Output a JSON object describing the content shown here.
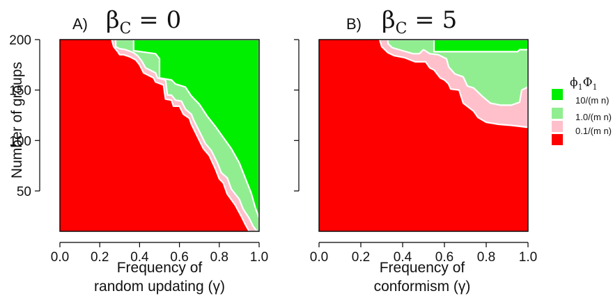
{
  "chart_data": [
    {
      "type": "area",
      "panel_label": "A)",
      "title_symbol": "β",
      "title_sub": "C",
      "title_rest": " = 0",
      "xlabel_line1": "Frequency of",
      "xlabel_line2": "random updating (γ)",
      "ylabel": "Number of groups",
      "xlim": [
        0,
        1
      ],
      "ylim": [
        10,
        200
      ],
      "xticks": [
        "0.0",
        "0.2",
        "0.4",
        "0.6",
        "0.8",
        "1.0"
      ],
      "yticks": [
        "50",
        "100",
        "150",
        "200"
      ],
      "regions": [
        {
          "name": "0.1/(m n)",
          "color": "#ff0000",
          "boundary": [
            [
              0,
              200
            ],
            [
              0,
              10
            ],
            [
              1,
              10
            ],
            [
              1,
              200
            ]
          ]
        },
        {
          "name": "1.0/(m n)",
          "color": "#ffc0cb",
          "boundary": [
            [
              0.26,
              200
            ],
            [
              0.27,
              193
            ],
            [
              0.29,
              188
            ],
            [
              0.3,
              185
            ],
            [
              0.32,
              185
            ],
            [
              0.35,
              183
            ],
            [
              0.38,
              180
            ],
            [
              0.4,
              175
            ],
            [
              0.42,
              167
            ],
            [
              0.47,
              162
            ],
            [
              0.48,
              158
            ],
            [
              0.52,
              155
            ],
            [
              0.53,
              141
            ],
            [
              0.56,
              140
            ],
            [
              0.57,
              134
            ],
            [
              0.6,
              134
            ],
            [
              0.62,
              126
            ],
            [
              0.65,
              122
            ],
            [
              0.66,
              116
            ],
            [
              0.68,
              108
            ],
            [
              0.7,
              100
            ],
            [
              0.72,
              92
            ],
            [
              0.75,
              85
            ],
            [
              0.78,
              72
            ],
            [
              0.8,
              62
            ],
            [
              0.82,
              58
            ],
            [
              0.84,
              47
            ],
            [
              0.88,
              36
            ],
            [
              0.91,
              25
            ],
            [
              0.93,
              17
            ],
            [
              0.95,
              10
            ],
            [
              1,
              10
            ],
            [
              1,
              200
            ]
          ]
        },
        {
          "name": "1.0/(m n)",
          "color": "#90ee90",
          "boundary": [
            [
              0.28,
              200
            ],
            [
              0.28,
              193
            ],
            [
              0.3,
              191
            ],
            [
              0.33,
              190
            ],
            [
              0.37,
              187
            ],
            [
              0.39,
              184
            ],
            [
              0.41,
              179
            ],
            [
              0.43,
              172
            ],
            [
              0.48,
              167
            ],
            [
              0.49,
              162
            ],
            [
              0.53,
              160
            ],
            [
              0.54,
              145
            ],
            [
              0.56,
              145
            ],
            [
              0.58,
              140
            ],
            [
              0.61,
              139
            ],
            [
              0.63,
              131
            ],
            [
              0.66,
              126
            ],
            [
              0.67,
              121
            ],
            [
              0.69,
              113
            ],
            [
              0.71,
              105
            ],
            [
              0.73,
              97
            ],
            [
              0.76,
              90
            ],
            [
              0.79,
              78
            ],
            [
              0.81,
              68
            ],
            [
              0.84,
              63
            ],
            [
              0.86,
              52
            ],
            [
              0.9,
              42
            ],
            [
              0.92,
              32
            ],
            [
              0.95,
              23
            ],
            [
              0.97,
              15
            ],
            [
              0.99,
              10
            ],
            [
              1,
              10
            ],
            [
              1,
              200
            ]
          ]
        },
        {
          "name": "10/(m n)",
          "color": "#00ee00",
          "boundary": [
            [
              0.37,
              200
            ],
            [
              0.37,
              189
            ],
            [
              0.48,
              186
            ],
            [
              0.5,
              181
            ],
            [
              0.5,
              162
            ],
            [
              0.56,
              160
            ],
            [
              0.58,
              156
            ],
            [
              0.63,
              153
            ],
            [
              0.66,
              144
            ],
            [
              0.7,
              136
            ],
            [
              0.74,
              124
            ],
            [
              0.78,
              114
            ],
            [
              0.82,
              103
            ],
            [
              0.86,
              92
            ],
            [
              0.9,
              78
            ],
            [
              0.93,
              63
            ],
            [
              0.96,
              48
            ],
            [
              0.98,
              34
            ],
            [
              1,
              23
            ],
            [
              1,
              200
            ]
          ]
        }
      ]
    },
    {
      "type": "area",
      "panel_label": "B)",
      "title_symbol": "β",
      "title_sub": "C",
      "title_rest": " = 5",
      "xlabel_line1": "Frequency of",
      "xlabel_line2": "conformism (γ)",
      "ylabel": "",
      "xlim": [
        0,
        1
      ],
      "ylim": [
        10,
        200
      ],
      "xticks": [
        "0.0",
        "0.2",
        "0.4",
        "0.6",
        "0.8",
        "1.0"
      ],
      "yticks": [
        "",
        "",
        "",
        ""
      ],
      "regions": [
        {
          "name": "0.1/(m n)",
          "color": "#ff0000",
          "boundary": [
            [
              0,
              200
            ],
            [
              0,
              10
            ],
            [
              1,
              10
            ],
            [
              1,
              200
            ]
          ]
        },
        {
          "name": "1.0/(m n)",
          "color": "#ffc0cb",
          "boundary": [
            [
              0.29,
              200
            ],
            [
              0.3,
              193
            ],
            [
              0.33,
              187
            ],
            [
              0.36,
              184
            ],
            [
              0.41,
              182
            ],
            [
              0.46,
              178
            ],
            [
              0.51,
              178
            ],
            [
              0.53,
              172
            ],
            [
              0.55,
              170
            ],
            [
              0.58,
              162
            ],
            [
              0.6,
              160
            ],
            [
              0.62,
              156
            ],
            [
              0.63,
              151
            ],
            [
              0.67,
              150
            ],
            [
              0.69,
              137
            ],
            [
              0.74,
              129
            ],
            [
              0.76,
              123
            ],
            [
              0.8,
              118
            ],
            [
              0.86,
              116
            ],
            [
              0.92,
              115
            ],
            [
              0.96,
              114
            ],
            [
              1,
              113
            ],
            [
              1,
              200
            ]
          ]
        },
        {
          "name": "1.0/(m n)",
          "color": "#90ee90",
          "boundary": [
            [
              0.33,
              200
            ],
            [
              0.33,
              196
            ],
            [
              0.35,
              192
            ],
            [
              0.4,
              189
            ],
            [
              0.45,
              186
            ],
            [
              0.48,
              186
            ],
            [
              0.5,
              190
            ],
            [
              0.53,
              186
            ],
            [
              0.57,
              185
            ],
            [
              0.61,
              181
            ],
            [
              0.62,
              173
            ],
            [
              0.65,
              166
            ],
            [
              0.69,
              163
            ],
            [
              0.71,
              154
            ],
            [
              0.74,
              152
            ],
            [
              0.78,
              144
            ],
            [
              0.82,
              137
            ],
            [
              0.87,
              135
            ],
            [
              0.92,
              135
            ],
            [
              0.96,
              138
            ],
            [
              0.97,
              150
            ],
            [
              1,
              153
            ],
            [
              1,
              200
            ]
          ]
        },
        {
          "name": "10/(m n)",
          "color": "#00ee00",
          "boundary": [
            [
              0.55,
              200
            ],
            [
              0.55,
              188
            ],
            [
              0.95,
              188
            ],
            [
              0.96,
              190
            ],
            [
              1,
              190
            ],
            [
              1,
              200
            ]
          ]
        }
      ]
    }
  ],
  "legend": {
    "title_sym1": "ϕ",
    "title_sub1": "1",
    "title_sym2": "Φ",
    "title_sub2": "1",
    "entries": [
      {
        "label": "10/(m n)",
        "color": "#00ee00"
      },
      {
        "label": "1.0/(m n)",
        "color": "#90ee90"
      },
      {
        "label": "0.1/(m n)",
        "color": "#ffc0cb"
      },
      {
        "label": "",
        "color": "#ff0000"
      }
    ]
  }
}
